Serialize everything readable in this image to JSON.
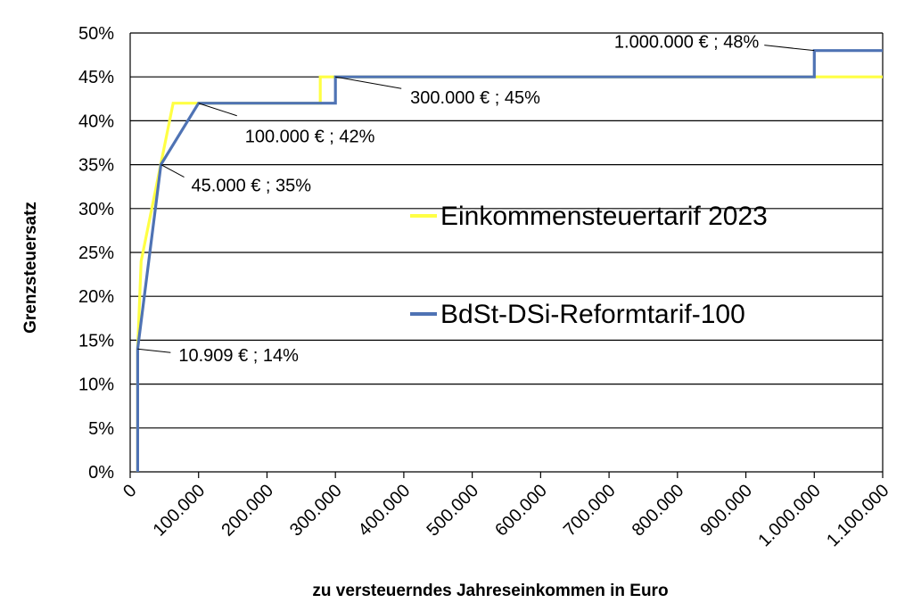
{
  "chart_data": {
    "type": "line",
    "title": "",
    "xlabel": "zu versteuerndes Jahreseinkommen in Euro",
    "ylabel": "Grenzsteuersatz",
    "xlim": [
      0,
      1100000
    ],
    "ylim": [
      0,
      50
    ],
    "grid": "horizontal",
    "legend_placement": "center-right",
    "x_ticks": [
      0,
      100000,
      200000,
      300000,
      400000,
      500000,
      600000,
      700000,
      800000,
      900000,
      1000000,
      1100000
    ],
    "x_tick_labels": [
      "0",
      "100.000",
      "200.000",
      "300.000",
      "400.000",
      "500.000",
      "600.000",
      "700.000",
      "800.000",
      "900.000",
      "1.000.000",
      "1.100.000"
    ],
    "y_ticks": [
      0,
      5,
      10,
      15,
      20,
      25,
      30,
      35,
      40,
      45,
      50
    ],
    "y_tick_labels": [
      "0%",
      "5%",
      "10%",
      "15%",
      "20%",
      "25%",
      "30%",
      "35%",
      "40%",
      "45%",
      "50%"
    ],
    "series": [
      {
        "name": "Einkommensteuertarif 2023",
        "color": "#ffff44",
        "points": [
          [
            10908,
            0
          ],
          [
            10908,
            14
          ],
          [
            16000,
            24
          ],
          [
            62810,
            42
          ],
          [
            277826,
            42
          ],
          [
            277826,
            45
          ],
          [
            1100000,
            45
          ]
        ]
      },
      {
        "name": "BdSt-DSi-Reformtarif-100",
        "color": "#4f73b4",
        "points": [
          [
            10909,
            0
          ],
          [
            10909,
            14
          ],
          [
            45000,
            35
          ],
          [
            100000,
            42
          ],
          [
            300000,
            42
          ],
          [
            300000,
            45
          ],
          [
            1000000,
            45
          ],
          [
            1000000,
            48
          ],
          [
            1100000,
            48
          ]
        ]
      }
    ],
    "annotations": [
      {
        "text": "10.909 € ; 14%",
        "point": [
          10909,
          14
        ]
      },
      {
        "text": "45.000 € ; 35%",
        "point": [
          45000,
          35
        ]
      },
      {
        "text": "100.000 € ; 42%",
        "point": [
          100000,
          42
        ]
      },
      {
        "text": "300.000 € ; 45%",
        "point": [
          300000,
          45
        ]
      },
      {
        "text": "1.000.000 € ; 48%",
        "point": [
          1000000,
          48
        ]
      }
    ]
  }
}
